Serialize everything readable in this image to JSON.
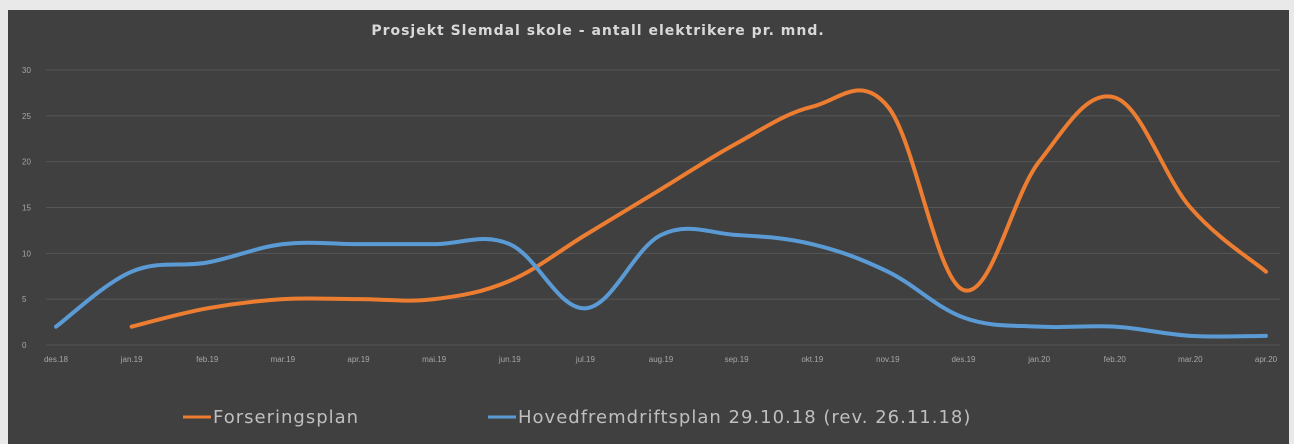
{
  "chart_data": {
    "type": "line",
    "title": "Prosjekt Slemdal skole - antall elektrikere pr. mnd.",
    "xlabel": "",
    "ylabel": "",
    "categories": [
      "des.18",
      "jan.19",
      "feb.19",
      "mar.19",
      "apr.19",
      "mai.19",
      "jun.19",
      "jul.19",
      "aug.19",
      "sep.19",
      "okt.19",
      "nov.19",
      "des.19",
      "jan.20",
      "feb.20",
      "mar.20",
      "apr.20"
    ],
    "ylim": [
      0,
      30
    ],
    "yticks": [
      "0",
      "5",
      "10",
      "15",
      "20",
      "25",
      "30"
    ],
    "grid": true,
    "legend_position": "bottom",
    "series": [
      {
        "name": "Forseringsplan",
        "color": "#ed7d31",
        "values": [
          null,
          2,
          4,
          5,
          5,
          5,
          7,
          12,
          17,
          22,
          26,
          26,
          6,
          20,
          27,
          15,
          8
        ]
      },
      {
        "name": "Hovedfremdriftsplan 29.10.18 (rev. 26.11.18)",
        "color": "#5b9bd5",
        "values": [
          2,
          8,
          9,
          11,
          11,
          11,
          11,
          4,
          12,
          12,
          11,
          8,
          3,
          2,
          2,
          1,
          1
        ]
      }
    ]
  }
}
